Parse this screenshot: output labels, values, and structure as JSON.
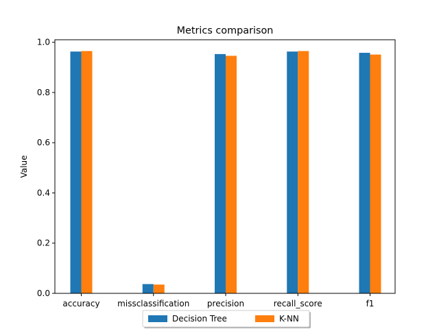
{
  "chart_data": {
    "type": "bar",
    "title": "Metrics comparison",
    "xlabel": "",
    "ylabel": "Value",
    "ylim": [
      0,
      1.0
    ],
    "yticks": [
      "0.0",
      "0.2",
      "0.4",
      "0.6",
      "0.8",
      "1.0"
    ],
    "categories": [
      "accuracy",
      "missclassification",
      "precision",
      "recall_score",
      "f1"
    ],
    "series": [
      {
        "name": "Decision Tree",
        "color": "#1f77b4",
        "values": [
          0.963,
          0.037,
          0.953,
          0.963,
          0.958
        ]
      },
      {
        "name": "K-NN",
        "color": "#ff7f0e",
        "values": [
          0.965,
          0.035,
          0.946,
          0.965,
          0.951
        ]
      }
    ],
    "legend": {
      "position": "bottom-center",
      "columns": 2
    },
    "grid": false
  }
}
